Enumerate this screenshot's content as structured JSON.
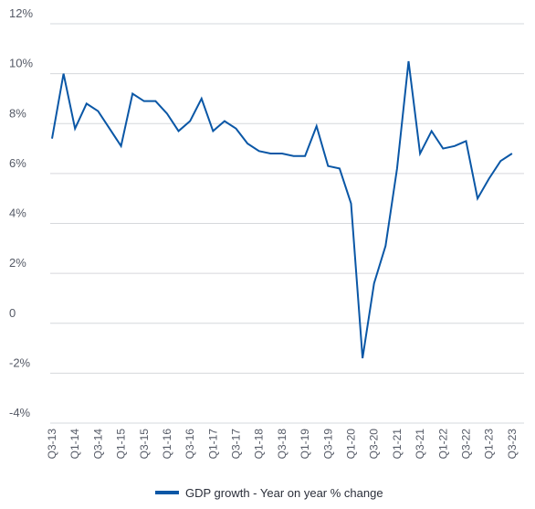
{
  "chart_data": {
    "type": "line",
    "x": [
      "Q3-13",
      "Q4-13",
      "Q1-14",
      "Q2-14",
      "Q3-14",
      "Q4-14",
      "Q1-15",
      "Q2-15",
      "Q3-15",
      "Q4-15",
      "Q1-16",
      "Q2-16",
      "Q3-16",
      "Q4-16",
      "Q1-17",
      "Q2-17",
      "Q3-17",
      "Q4-17",
      "Q1-18",
      "Q2-18",
      "Q3-18",
      "Q4-18",
      "Q1-19",
      "Q2-19",
      "Q3-19",
      "Q4-19",
      "Q1-20",
      "Q2-20",
      "Q3-20",
      "Q4-20",
      "Q1-21",
      "Q2-21",
      "Q3-21",
      "Q4-21",
      "Q1-22",
      "Q2-22",
      "Q3-22",
      "Q4-22",
      "Q1-23",
      "Q2-23",
      "Q3-23"
    ],
    "x_tick_labels": [
      "Q3-13",
      "Q1-14",
      "Q3-14",
      "Q1-15",
      "Q3-15",
      "Q1-16",
      "Q3-16",
      "Q1-17",
      "Q3-17",
      "Q1-18",
      "Q3-18",
      "Q1-19",
      "Q3-19",
      "Q1-20",
      "Q3-20",
      "Q1-21",
      "Q3-21",
      "Q1-22",
      "Q3-22",
      "Q1-23",
      "Q3-23"
    ],
    "series": [
      {
        "name": "GDP growth - Year on year % change",
        "color": "#0a57a6",
        "values": [
          7.4,
          10.0,
          7.8,
          8.8,
          8.5,
          7.8,
          7.1,
          9.2,
          8.9,
          8.9,
          8.4,
          7.7,
          8.1,
          9.0,
          7.7,
          8.1,
          7.8,
          7.2,
          6.9,
          6.8,
          6.8,
          6.7,
          6.7,
          7.9,
          6.3,
          6.2,
          4.8,
          -1.4,
          1.6,
          3.1,
          6.2,
          10.5,
          6.8,
          7.7,
          7.0,
          7.1,
          7.3,
          5.0,
          5.8,
          6.5,
          6.8
        ]
      }
    ],
    "y_ticks": [
      -4,
      -2,
      0,
      2,
      4,
      6,
      8,
      10,
      12
    ],
    "y_tick_labels": [
      "-4%",
      "-2%",
      "0",
      "2%",
      "4%",
      "6%",
      "8%",
      "10%",
      "12%"
    ],
    "ylim": [
      -4,
      12
    ],
    "grid": "horizontal",
    "legend": "bottom-center",
    "title": "",
    "xlabel": "",
    "ylabel": ""
  }
}
